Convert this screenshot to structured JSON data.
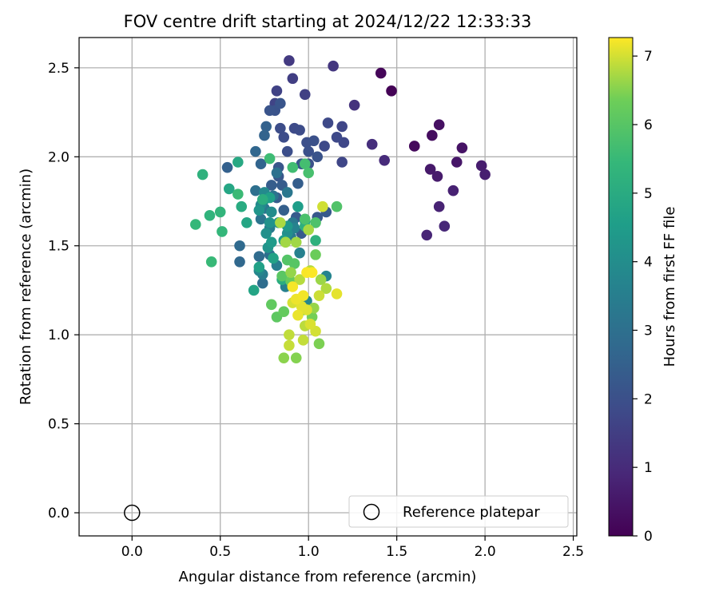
{
  "chart_data": {
    "type": "scatter",
    "title": "FOV centre drift starting at 2024/12/22 12:33:33",
    "xlabel": "Angular distance from reference (arcmin)",
    "ylabel": "Rotation from reference (arcmin)",
    "xlim": [
      -0.3,
      2.52
    ],
    "ylim": [
      -0.13,
      2.67
    ],
    "xticks": [
      0.0,
      0.5,
      1.0,
      1.5,
      2.0,
      2.5
    ],
    "xtick_labels": [
      "0.0",
      "0.5",
      "1.0",
      "1.5",
      "2.0",
      "2.5"
    ],
    "yticks": [
      0.0,
      0.5,
      1.0,
      1.5,
      2.0,
      2.5
    ],
    "ytick_labels": [
      "0.0",
      "0.5",
      "1.0",
      "1.5",
      "2.0",
      "2.5"
    ],
    "grid": true,
    "colormap": "viridis",
    "colorbar": {
      "label": "Hours from first FF file",
      "min": 0,
      "max": 7.27,
      "ticks": [
        0,
        1,
        2,
        3,
        4,
        5,
        6,
        7
      ],
      "tick_labels": [
        "0",
        "1",
        "2",
        "3",
        "4",
        "5",
        "6",
        "7"
      ]
    },
    "reference_point": {
      "x": 0.0,
      "y": 0.0
    },
    "legend": {
      "placement": "lower-right",
      "entries": [
        "Reference platepar"
      ]
    },
    "series": [
      {
        "points": [
          [
            1.47,
            2.37,
            0.05
          ],
          [
            1.41,
            2.47,
            0.12
          ],
          [
            1.6,
            2.06,
            0.2
          ],
          [
            1.7,
            2.12,
            0.28
          ],
          [
            1.74,
            2.18,
            0.35
          ],
          [
            1.87,
            2.05,
            0.42
          ],
          [
            1.84,
            1.97,
            0.5
          ],
          [
            1.69,
            1.93,
            0.55
          ],
          [
            1.73,
            1.89,
            0.6
          ],
          [
            1.98,
            1.95,
            0.65
          ],
          [
            2.0,
            1.9,
            0.7
          ],
          [
            1.82,
            1.81,
            0.75
          ],
          [
            1.74,
            1.72,
            0.8
          ],
          [
            1.67,
            1.56,
            0.85
          ],
          [
            1.77,
            1.61,
            0.9
          ],
          [
            1.43,
            1.98,
            1.0
          ],
          [
            1.36,
            2.07,
            1.1
          ],
          [
            1.26,
            2.29,
            1.2
          ],
          [
            1.14,
            2.51,
            1.3
          ],
          [
            0.89,
            2.54,
            1.4
          ],
          [
            0.91,
            2.44,
            1.5
          ],
          [
            0.98,
            2.35,
            1.55
          ],
          [
            0.82,
            2.37,
            1.6
          ],
          [
            0.81,
            2.3,
            1.65
          ],
          [
            1.19,
            2.17,
            1.7
          ],
          [
            1.19,
            1.97,
            1.72
          ],
          [
            1.2,
            2.08,
            1.75
          ],
          [
            1.11,
            2.19,
            1.78
          ],
          [
            1.16,
            2.11,
            1.8
          ],
          [
            1.09,
            2.06,
            1.82
          ],
          [
            0.92,
            2.16,
            1.85
          ],
          [
            0.95,
            2.15,
            1.88
          ],
          [
            0.84,
            2.16,
            1.9
          ],
          [
            0.86,
            2.11,
            1.92
          ],
          [
            0.88,
            2.03,
            1.95
          ],
          [
            0.99,
            2.08,
            1.97
          ],
          [
            1.0,
            2.03,
            2.0
          ],
          [
            1.03,
            2.09,
            2.02
          ],
          [
            1.0,
            1.96,
            2.05
          ],
          [
            1.05,
            2.0,
            2.08
          ],
          [
            0.81,
            2.26,
            2.1
          ],
          [
            0.78,
            2.26,
            2.12
          ],
          [
            0.84,
            2.3,
            2.15
          ],
          [
            0.83,
            1.94,
            2.18
          ],
          [
            0.83,
            1.89,
            2.2
          ],
          [
            0.96,
            1.96,
            2.22
          ],
          [
            1.05,
            1.66,
            2.25
          ],
          [
            1.1,
            1.69,
            2.28
          ],
          [
            0.96,
            1.57,
            2.3
          ],
          [
            0.93,
            1.66,
            2.32
          ],
          [
            0.85,
            1.84,
            2.35
          ],
          [
            0.82,
            1.77,
            2.38
          ],
          [
            0.79,
            1.84,
            2.4
          ],
          [
            0.94,
            1.85,
            2.42
          ],
          [
            0.86,
            1.7,
            2.45
          ],
          [
            0.54,
            1.94,
            2.5
          ],
          [
            0.76,
            2.17,
            2.55
          ],
          [
            0.75,
            2.12,
            2.6
          ],
          [
            0.73,
            1.96,
            2.65
          ],
          [
            0.7,
            2.03,
            2.7
          ],
          [
            0.61,
            1.41,
            2.75
          ],
          [
            0.61,
            1.5,
            2.8
          ],
          [
            0.72,
            1.44,
            2.85
          ],
          [
            0.74,
            1.29,
            2.9
          ],
          [
            0.78,
            1.45,
            2.95
          ],
          [
            0.7,
            1.81,
            3.0
          ],
          [
            0.82,
            1.91,
            3.05
          ],
          [
            0.8,
            1.78,
            3.1
          ],
          [
            0.73,
            1.65,
            3.15
          ],
          [
            0.75,
            1.71,
            3.2
          ],
          [
            0.88,
            1.8,
            3.25
          ],
          [
            0.91,
            1.63,
            3.3
          ],
          [
            0.9,
            1.55,
            3.35
          ],
          [
            0.78,
            1.6,
            3.4
          ],
          [
            0.74,
            1.34,
            3.45
          ],
          [
            0.82,
            1.39,
            3.5
          ],
          [
            0.87,
            1.27,
            3.55
          ],
          [
            0.95,
            1.46,
            3.6
          ],
          [
            0.92,
            1.6,
            3.65
          ],
          [
            1.1,
            1.33,
            3.7
          ],
          [
            0.99,
            1.19,
            3.75
          ],
          [
            0.72,
            1.36,
            3.8
          ],
          [
            0.73,
            1.73,
            3.85
          ],
          [
            0.75,
            1.8,
            3.9
          ],
          [
            0.79,
            1.69,
            3.95
          ],
          [
            0.83,
            1.63,
            4.0
          ],
          [
            0.88,
            1.57,
            4.05
          ],
          [
            0.76,
            1.57,
            4.1
          ],
          [
            0.78,
            1.63,
            4.15
          ],
          [
            0.77,
            1.49,
            4.2
          ],
          [
            0.72,
            1.7,
            4.25
          ],
          [
            0.75,
            1.76,
            4.3
          ],
          [
            0.88,
            1.61,
            4.35
          ],
          [
            0.79,
            1.52,
            4.4
          ],
          [
            0.86,
            1.53,
            4.45
          ],
          [
            0.98,
            1.64,
            4.5
          ],
          [
            0.94,
            1.72,
            4.55
          ],
          [
            0.78,
            1.77,
            4.6
          ],
          [
            0.72,
            1.38,
            4.65
          ],
          [
            0.8,
            1.43,
            4.7
          ],
          [
            0.69,
            1.25,
            4.75
          ],
          [
            0.65,
            1.63,
            4.8
          ],
          [
            0.55,
            1.82,
            4.85
          ],
          [
            0.6,
            1.97,
            4.9
          ],
          [
            0.62,
            1.72,
            5.0
          ],
          [
            0.85,
            1.31,
            5.05
          ],
          [
            0.74,
            1.76,
            5.1
          ],
          [
            0.98,
            1.61,
            5.15
          ],
          [
            1.04,
            1.53,
            5.2
          ],
          [
            0.4,
            1.9,
            5.25
          ],
          [
            0.44,
            1.67,
            5.3
          ],
          [
            0.5,
            1.69,
            5.35
          ],
          [
            0.51,
            1.58,
            5.4
          ],
          [
            0.36,
            1.62,
            5.45
          ],
          [
            0.45,
            1.41,
            5.5
          ],
          [
            0.6,
            1.79,
            5.55
          ],
          [
            0.78,
            1.99,
            5.6
          ],
          [
            0.91,
            1.94,
            5.65
          ],
          [
            0.98,
            1.96,
            5.7
          ],
          [
            1.0,
            1.91,
            5.75
          ],
          [
            0.98,
            1.65,
            5.8
          ],
          [
            1.04,
            1.63,
            5.85
          ],
          [
            1.16,
            1.72,
            5.9
          ],
          [
            0.88,
            1.42,
            5.95
          ],
          [
            0.92,
            1.4,
            6.0
          ],
          [
            0.85,
            1.33,
            6.05
          ],
          [
            0.82,
            1.1,
            6.1
          ],
          [
            0.79,
            1.17,
            6.15
          ],
          [
            0.86,
            1.13,
            6.2
          ],
          [
            0.9,
            1.3,
            6.25
          ],
          [
            1.04,
            1.45,
            6.3
          ],
          [
            0.97,
            1.14,
            6.35
          ],
          [
            1.02,
            1.1,
            6.4
          ],
          [
            1.06,
            0.95,
            6.45
          ],
          [
            0.93,
            0.87,
            6.5
          ],
          [
            0.86,
            0.87,
            6.55
          ],
          [
            0.9,
            1.35,
            6.6
          ],
          [
            1.03,
            1.15,
            6.62
          ],
          [
            1.07,
            1.31,
            6.65
          ],
          [
            0.93,
            1.52,
            6.68
          ],
          [
            0.87,
            1.52,
            6.7
          ],
          [
            1.0,
            1.59,
            6.72
          ],
          [
            0.84,
            1.63,
            6.75
          ],
          [
            1.1,
            1.26,
            6.78
          ],
          [
            1.01,
            1.36,
            6.8
          ],
          [
            0.95,
            1.31,
            6.82
          ],
          [
            0.98,
            1.05,
            6.85
          ],
          [
            0.89,
            1.0,
            6.88
          ],
          [
            0.97,
            0.97,
            6.9
          ],
          [
            0.89,
            0.94,
            6.92
          ],
          [
            1.06,
            1.22,
            6.95
          ],
          [
            1.08,
            1.72,
            6.98
          ],
          [
            1.04,
            1.02,
            7.0
          ],
          [
            0.91,
            1.18,
            7.02
          ],
          [
            1.01,
            1.06,
            7.05
          ],
          [
            0.99,
            1.14,
            7.08
          ],
          [
            0.96,
            1.16,
            7.1
          ],
          [
            1.16,
            1.23,
            7.12
          ],
          [
            0.94,
            1.11,
            7.15
          ],
          [
            0.93,
            1.2,
            7.17
          ],
          [
            0.97,
            1.22,
            7.2
          ],
          [
            0.91,
            1.27,
            7.22
          ],
          [
            0.99,
            1.35,
            7.24
          ],
          [
            1.02,
            1.35,
            7.26
          ]
        ]
      }
    ]
  }
}
